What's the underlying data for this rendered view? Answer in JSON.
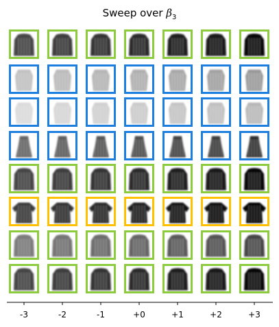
{
  "title": {
    "prefix": "Sweep over ",
    "symbol": "β",
    "subscript": "3"
  },
  "x_ticks": [
    "-3",
    "-2",
    "-1",
    "+0",
    "+1",
    "+2",
    "+3"
  ],
  "frame_colors": {
    "green": "#8ccc3c",
    "blue": "#1c7fe0",
    "yellow": "#ffc000"
  },
  "rows": [
    {
      "frame": "green",
      "item": "coat"
    },
    {
      "frame": "blue",
      "item": "faint-shirt"
    },
    {
      "frame": "blue",
      "item": "very-faint"
    },
    {
      "frame": "blue",
      "item": "dress"
    },
    {
      "frame": "green",
      "item": "coat"
    },
    {
      "frame": "yellow",
      "item": "shirt"
    },
    {
      "frame": "green",
      "item": "pullover-light"
    },
    {
      "frame": "green",
      "item": "coat"
    }
  ]
}
